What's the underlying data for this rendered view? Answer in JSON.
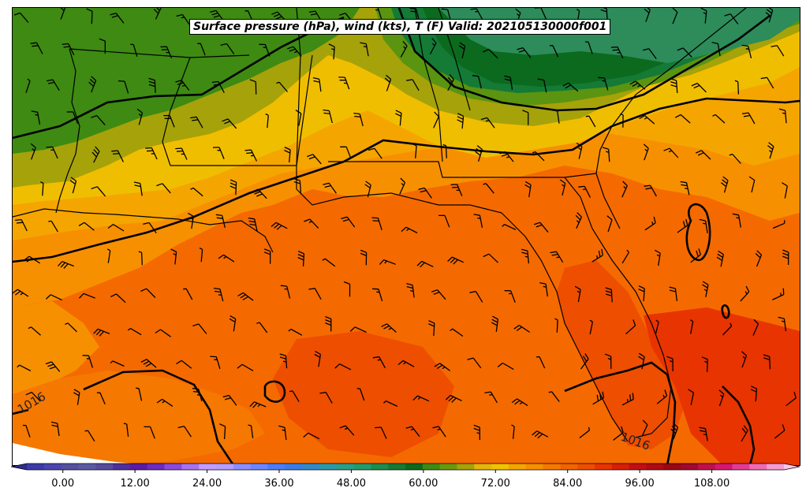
{
  "title": "Surface pressure (hPa), wind (kts), T (F) Valid: 202105130000f001",
  "colorbar": {
    "tick_labels": [
      "0.00",
      "12.00",
      "24.00",
      "36.00",
      "48.00",
      "60.00",
      "72.00",
      "84.00",
      "96.00",
      "108.00"
    ],
    "tick_values": [
      0,
      12,
      24,
      36,
      48,
      60,
      72,
      84,
      96,
      108
    ],
    "min": -6,
    "max": 120,
    "step": 3,
    "colors": [
      "#3d3aa8",
      "#4a46ae",
      "#55509f",
      "#5c5aa6",
      "#584b9e",
      "#4f2f9a",
      "#5a1aa3",
      "#6e2bbf",
      "#8a4ad8",
      "#a872ee",
      "#c39cff",
      "#b69dff",
      "#8e8dfc",
      "#6c86ff",
      "#4d7cf7",
      "#3a7ce6",
      "#3389c8",
      "#2f98a8",
      "#2c9d8a",
      "#279a6a",
      "#1f8b4e",
      "#147a36",
      "#0a6a1c",
      "#3e8a12",
      "#6a9a0c",
      "#a6a20a",
      "#e6b40a",
      "#f2c200",
      "#f5a500",
      "#f79000",
      "#f57800",
      "#f26400",
      "#ee4e00",
      "#e83400",
      "#d81f06",
      "#c40f10",
      "#b00a14",
      "#9a0712",
      "#a00a2e",
      "#c0104a",
      "#d81670",
      "#e43a96",
      "#f06ab4",
      "#f89ad0"
    ],
    "under_color": "#2d2c8f",
    "over_color": "#fcc4e6"
  },
  "contours": [
    {
      "label": "1016"
    },
    {
      "label": "1016"
    }
  ],
  "colors": {
    "cool_green": "#2d8c5a",
    "dark_green": "#0b6a1e",
    "olive": "#3e8a12",
    "olive_yellow": "#a6a20a",
    "yellow": "#f0be00",
    "orange": "#f79000",
    "deep_orange": "#f46a00",
    "red_orange": "#ee4e00"
  }
}
